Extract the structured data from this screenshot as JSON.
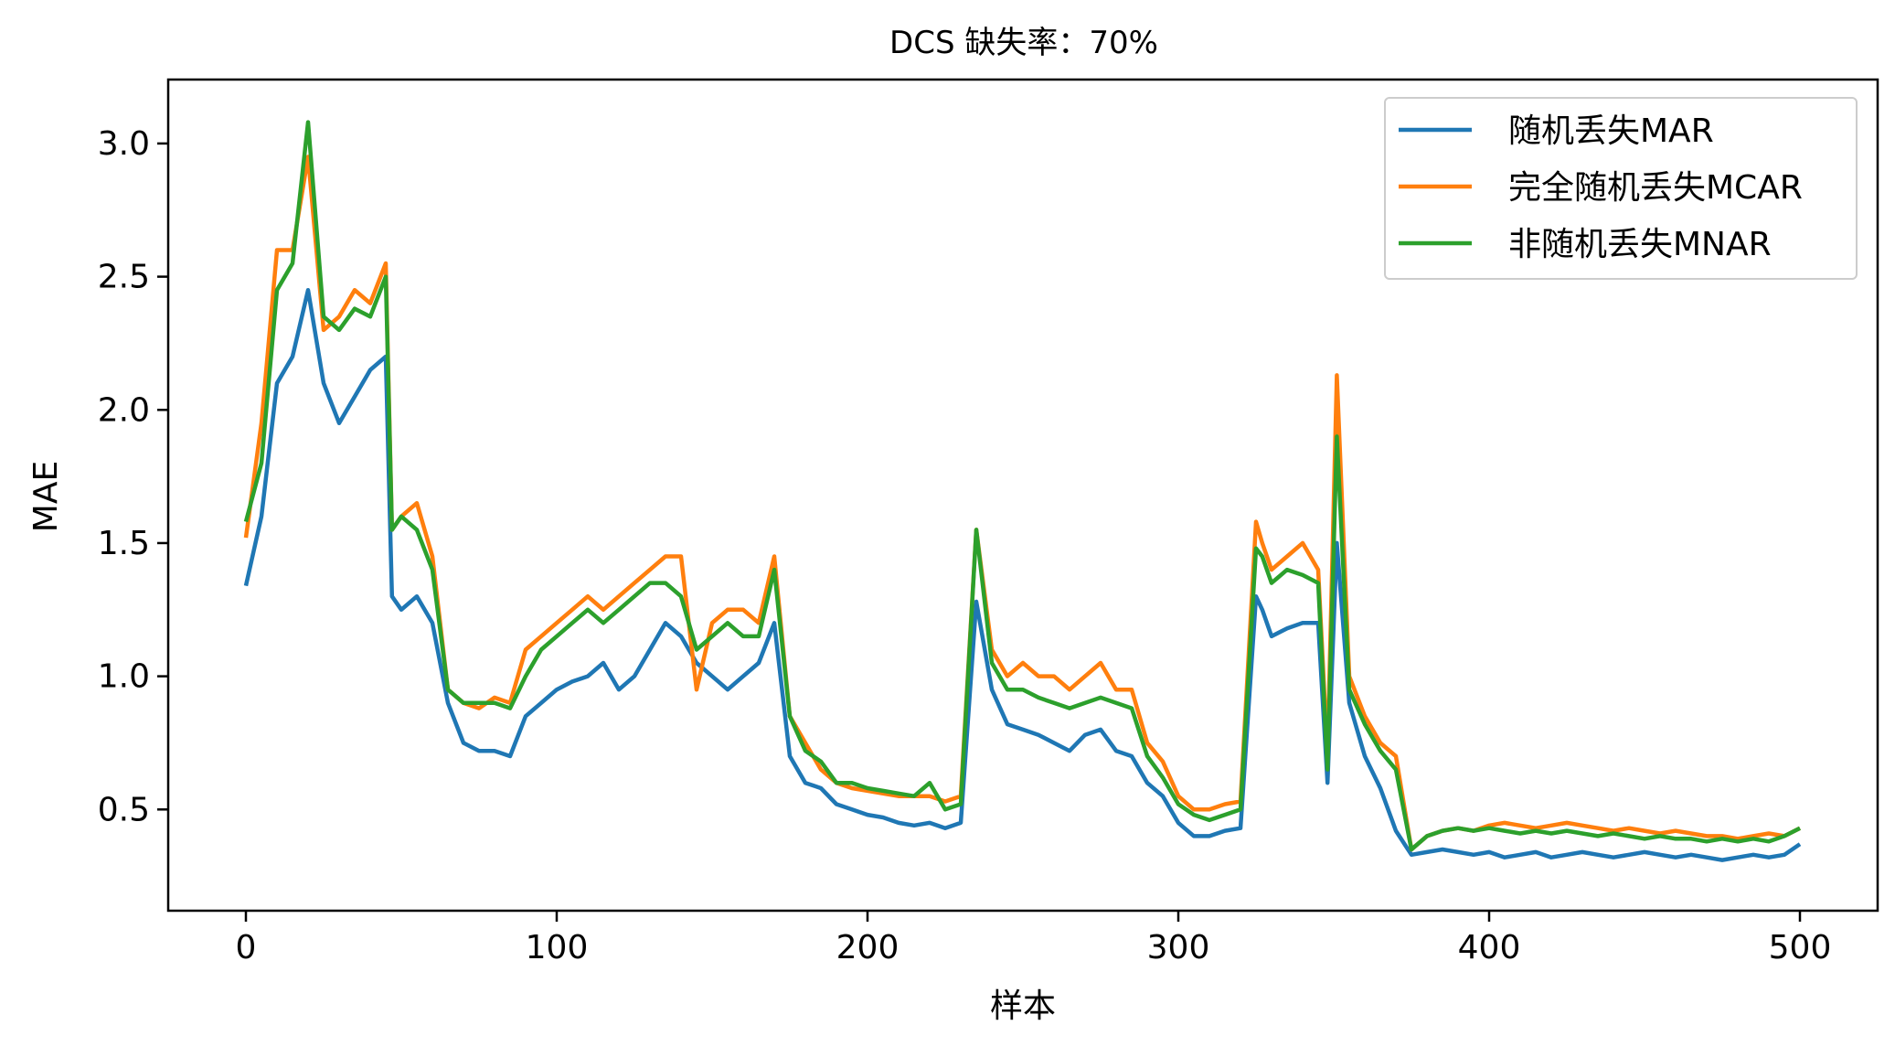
{
  "chart_data": {
    "type": "line",
    "title": "DCS 缺失率：70%",
    "xlabel": "样本",
    "ylabel": "MAE",
    "xlim": [
      -25,
      525
    ],
    "ylim": [
      0.12,
      3.24
    ],
    "xticks": [
      0,
      100,
      200,
      300,
      400,
      500
    ],
    "yticks": [
      0.5,
      1.0,
      1.5,
      2.0,
      2.5,
      3.0
    ],
    "xtick_labels": [
      "0",
      "100",
      "200",
      "300",
      "400",
      "500"
    ],
    "ytick_labels": [
      "0.5",
      "1.0",
      "1.5",
      "2.0",
      "2.5",
      "3.0"
    ],
    "legend_position": "top-right",
    "grid": false,
    "x": [
      0,
      5,
      10,
      15,
      20,
      25,
      30,
      35,
      40,
      45,
      47,
      50,
      55,
      60,
      65,
      70,
      75,
      80,
      85,
      90,
      95,
      100,
      105,
      110,
      115,
      120,
      125,
      130,
      135,
      140,
      145,
      150,
      155,
      160,
      165,
      170,
      175,
      180,
      185,
      190,
      195,
      200,
      205,
      210,
      215,
      220,
      225,
      230,
      235,
      240,
      245,
      250,
      255,
      260,
      265,
      270,
      275,
      280,
      285,
      290,
      295,
      300,
      305,
      310,
      315,
      320,
      325,
      327,
      330,
      335,
      340,
      345,
      348,
      351,
      355,
      360,
      365,
      370,
      375,
      380,
      385,
      390,
      395,
      400,
      405,
      410,
      415,
      420,
      425,
      430,
      435,
      440,
      445,
      450,
      455,
      460,
      465,
      470,
      475,
      480,
      485,
      490,
      495,
      500
    ],
    "series": [
      {
        "name": "随机丢失MAR",
        "color": "#1f77b4",
        "values": [
          1.34,
          1.6,
          2.1,
          2.2,
          2.45,
          2.1,
          1.95,
          2.05,
          2.15,
          2.2,
          1.3,
          1.25,
          1.3,
          1.2,
          0.9,
          0.75,
          0.72,
          0.72,
          0.7,
          0.85,
          0.9,
          0.95,
          0.98,
          1.0,
          1.05,
          0.95,
          1.0,
          1.1,
          1.2,
          1.15,
          1.05,
          1.0,
          0.95,
          1.0,
          1.05,
          1.2,
          0.7,
          0.6,
          0.58,
          0.52,
          0.5,
          0.48,
          0.47,
          0.45,
          0.44,
          0.45,
          0.43,
          0.45,
          1.28,
          0.95,
          0.82,
          0.8,
          0.78,
          0.75,
          0.72,
          0.78,
          0.8,
          0.72,
          0.7,
          0.6,
          0.55,
          0.45,
          0.4,
          0.4,
          0.42,
          0.43,
          1.3,
          1.25,
          1.15,
          1.18,
          1.2,
          1.2,
          0.6,
          1.5,
          0.9,
          0.7,
          0.58,
          0.42,
          0.33,
          0.34,
          0.35,
          0.34,
          0.33,
          0.34,
          0.32,
          0.33,
          0.34,
          0.32,
          0.33,
          0.34,
          0.33,
          0.32,
          0.33,
          0.34,
          0.33,
          0.32,
          0.33,
          0.32,
          0.31,
          0.32,
          0.33,
          0.32,
          0.33,
          0.37
        ]
      },
      {
        "name": "完全随机丢失MCAR",
        "color": "#ff7f0e",
        "values": [
          1.52,
          1.95,
          2.6,
          2.6,
          2.95,
          2.3,
          2.35,
          2.45,
          2.4,
          2.55,
          1.55,
          1.6,
          1.65,
          1.45,
          0.95,
          0.9,
          0.88,
          0.92,
          0.9,
          1.1,
          1.15,
          1.2,
          1.25,
          1.3,
          1.25,
          1.3,
          1.35,
          1.4,
          1.45,
          1.45,
          0.95,
          1.2,
          1.25,
          1.25,
          1.2,
          1.45,
          0.85,
          0.75,
          0.65,
          0.6,
          0.58,
          0.57,
          0.56,
          0.55,
          0.55,
          0.55,
          0.53,
          0.55,
          1.55,
          1.1,
          1.0,
          1.05,
          1.0,
          1.0,
          0.95,
          1.0,
          1.05,
          0.95,
          0.95,
          0.75,
          0.68,
          0.55,
          0.5,
          0.5,
          0.52,
          0.53,
          1.58,
          1.5,
          1.4,
          1.45,
          1.5,
          1.4,
          0.7,
          2.13,
          1.0,
          0.85,
          0.75,
          0.7,
          0.35,
          0.4,
          0.42,
          0.43,
          0.42,
          0.44,
          0.45,
          0.44,
          0.43,
          0.44,
          0.45,
          0.44,
          0.43,
          0.42,
          0.43,
          0.42,
          0.41,
          0.42,
          0.41,
          0.4,
          0.4,
          0.39,
          0.4,
          0.41,
          0.4,
          0.43
        ]
      },
      {
        "name": "非随机丢失MNAR",
        "color": "#2ca02c",
        "values": [
          1.58,
          1.8,
          2.45,
          2.55,
          3.08,
          2.35,
          2.3,
          2.38,
          2.35,
          2.5,
          1.55,
          1.6,
          1.55,
          1.4,
          0.95,
          0.9,
          0.9,
          0.9,
          0.88,
          1.0,
          1.1,
          1.15,
          1.2,
          1.25,
          1.2,
          1.25,
          1.3,
          1.35,
          1.35,
          1.3,
          1.1,
          1.15,
          1.2,
          1.15,
          1.15,
          1.4,
          0.85,
          0.72,
          0.68,
          0.6,
          0.6,
          0.58,
          0.57,
          0.56,
          0.55,
          0.6,
          0.5,
          0.52,
          1.55,
          1.05,
          0.95,
          0.95,
          0.92,
          0.9,
          0.88,
          0.9,
          0.92,
          0.9,
          0.88,
          0.7,
          0.62,
          0.52,
          0.48,
          0.46,
          0.48,
          0.5,
          1.48,
          1.45,
          1.35,
          1.4,
          1.38,
          1.35,
          0.65,
          1.9,
          0.95,
          0.82,
          0.72,
          0.65,
          0.35,
          0.4,
          0.42,
          0.43,
          0.42,
          0.43,
          0.42,
          0.41,
          0.42,
          0.41,
          0.42,
          0.41,
          0.4,
          0.41,
          0.4,
          0.39,
          0.4,
          0.39,
          0.39,
          0.38,
          0.39,
          0.38,
          0.39,
          0.38,
          0.4,
          0.43
        ]
      }
    ]
  }
}
